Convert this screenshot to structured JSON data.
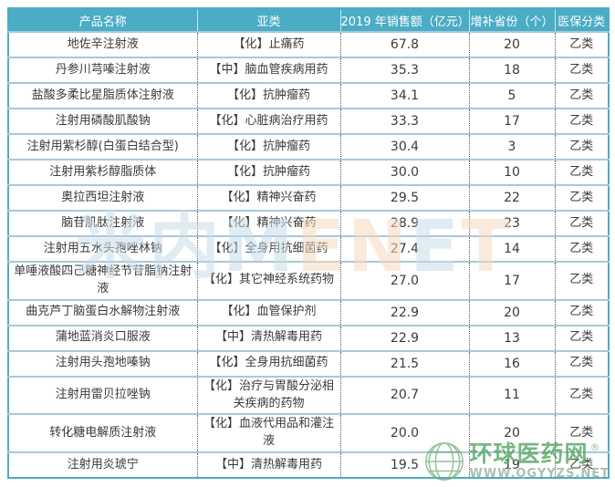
{
  "colors": {
    "header_bg": "#4BACC6",
    "header_text": "#ffffff",
    "outer_border": "#4BACC6",
    "row_line": "#a6c9da",
    "grid_dotted": "#5a5a5a",
    "body_text": "#3a3a3a",
    "watermark_blue": "#c7dbe9",
    "watermark_orange": "#f6d9bf",
    "logo_green": "#57a561"
  },
  "watermark": {
    "segments": [
      {
        "text": "米内M",
        "color": "#c7dbe9"
      },
      {
        "text": "EN",
        "color": "#f6d9bf"
      },
      {
        "text": "E",
        "color": "#c7dbe9"
      },
      {
        "text": "T",
        "color": "#f6d9bf"
      }
    ]
  },
  "logo": {
    "site_name": "环球医药网",
    "registered_mark": "®",
    "url_text": "WWW.QGYYZS.NET"
  },
  "chart_data": {
    "type": "table",
    "title": "",
    "columns": [
      "产品名称",
      "亚类",
      "2019 年销售额（亿元）",
      "增补省份（个）",
      "医保分类"
    ],
    "rows": [
      [
        "地佐辛注射液",
        "【化】止痛药",
        "67.8",
        "20",
        "乙类"
      ],
      [
        "丹参川芎嗪注射液",
        "【中】脑血管疾病用药",
        "35.3",
        "18",
        "乙类"
      ],
      [
        "盐酸多柔比星脂质体注射液",
        "【化】抗肿瘤药",
        "34.1",
        "5",
        "乙类"
      ],
      [
        "注射用磷酸肌酸钠",
        "【化】心脏病治疗用药",
        "33.3",
        "17",
        "乙类"
      ],
      [
        "注射用紫杉醇(白蛋白结合型)",
        "【化】抗肿瘤药",
        "30.4",
        "3",
        "乙类"
      ],
      [
        "注射用紫杉醇脂质体",
        "【化】抗肿瘤药",
        "30.0",
        "10",
        "乙类"
      ],
      [
        "奥拉西坦注射液",
        "【化】精神兴奋药",
        "29.5",
        "22",
        "乙类"
      ],
      [
        "脑苷肌肽注射液",
        "【化】精神兴奋药",
        "28.9",
        "23",
        "乙类"
      ],
      [
        "注射用五水头孢唑林钠",
        "【化】全身用抗细菌药",
        "27.4",
        "14",
        "乙类"
      ],
      [
        "单唾液酸四己糖神经节苷脂钠注射液",
        "【化】其它神经系统药物",
        "27.0",
        "17",
        "乙类"
      ],
      [
        "曲克芦丁脑蛋白水解物注射液",
        "【化】血管保护剂",
        "22.9",
        "20",
        "乙类"
      ],
      [
        "蒲地蓝消炎口服液",
        "【中】清热解毒用药",
        "22.9",
        "13",
        "乙类"
      ],
      [
        "注射用头孢地嗪钠",
        "【化】全身用抗细菌药",
        "21.5",
        "16",
        "乙类"
      ],
      [
        "注射用雷贝拉唑钠",
        "【化】治疗与胃酸分泌相关疾病的药物",
        "20.7",
        "11",
        "乙类"
      ],
      [
        "转化糖电解质注射液",
        "【化】血液代用品和灌注液",
        "20.0",
        "20",
        "乙类"
      ],
      [
        "注射用炎琥宁",
        "【中】清热解毒用药",
        "19.5",
        "19",
        "乙类"
      ]
    ]
  }
}
